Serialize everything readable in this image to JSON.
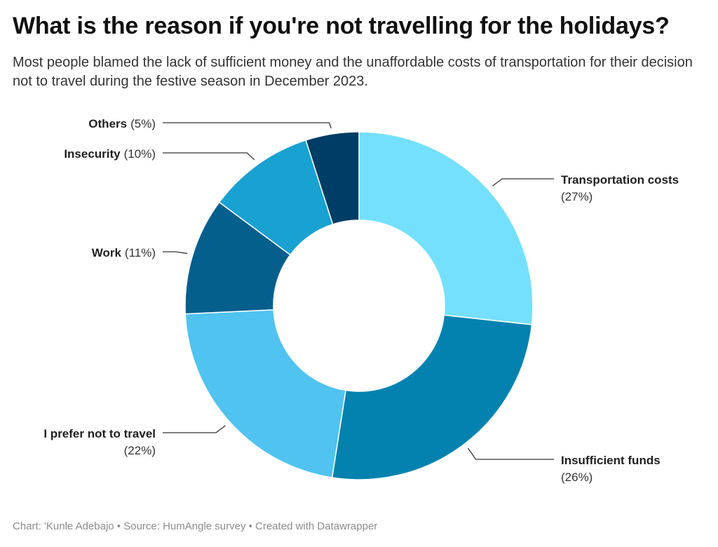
{
  "title": "What is the reason if you're not travelling for the holidays?",
  "subtitle": "Most people blamed the lack of sufficient money and the unaffordable costs of transportation for their decision not to travel during the festive season in December 2023.",
  "footer": "Chart: 'Kunle Adebajo • Source: HumAngle survey • Created with Datawrapper",
  "chart_data": {
    "type": "pie",
    "variant": "donut",
    "title": "What is the reason if you're not travelling for the holidays?",
    "slices": [
      {
        "label": "Transportation costs",
        "value": 27,
        "pct_text": "(27%)",
        "color": "#74e0fd"
      },
      {
        "label": "Insufficient funds",
        "value": 26,
        "pct_text": "(26%)",
        "color": "#0382b0"
      },
      {
        "label": "I prefer not to travel",
        "value": 22,
        "pct_text": "(22%)",
        "color": "#50c3f0"
      },
      {
        "label": "Work",
        "value": 11,
        "pct_text": "(11%)",
        "color": "#055f8c"
      },
      {
        "label": "Insecurity",
        "value": 10,
        "pct_text": "(10%)",
        "color": "#19a1d1"
      },
      {
        "label": "Others",
        "value": 5,
        "pct_text": "(5%)",
        "color": "#003d66"
      }
    ]
  }
}
